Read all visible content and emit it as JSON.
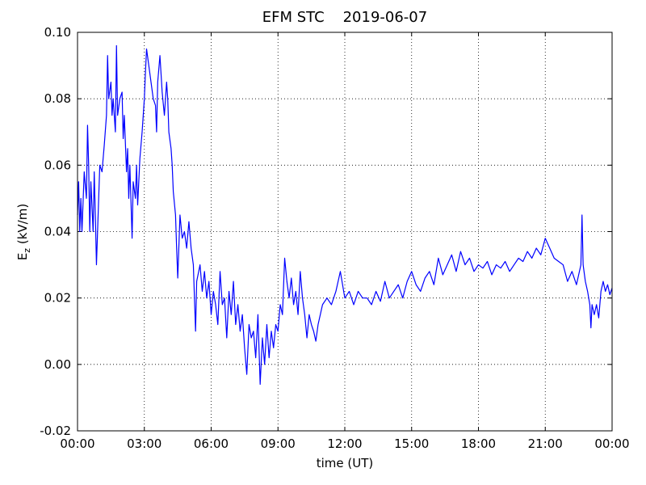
{
  "chart_data": {
    "type": "line",
    "title": "EFM STC    2019-06-07",
    "xlabel": "time (UT)",
    "ylabel": [
      "E",
      "z",
      " (kV/m)"
    ],
    "xlim": [
      0,
      24
    ],
    "xticks": [
      {
        "value": 0,
        "label": "00:00"
      },
      {
        "value": 3,
        "label": "03:00"
      },
      {
        "value": 6,
        "label": "06:00"
      },
      {
        "value": 9,
        "label": "09:00"
      },
      {
        "value": 12,
        "label": "12:00"
      },
      {
        "value": 15,
        "label": "15:00"
      },
      {
        "value": 18,
        "label": "18:00"
      },
      {
        "value": 21,
        "label": "21:00"
      },
      {
        "value": 24,
        "label": "00:00"
      }
    ],
    "ylim": [
      -0.02,
      0.1
    ],
    "yticks": [
      -0.02,
      {
        "value": 0,
        "label": "0.00"
      },
      0.02,
      0.04,
      0.06,
      0.08,
      {
        "value": 0.1,
        "label": "0.10"
      }
    ],
    "grid": true,
    "series": [
      {
        "color": "#0000ff",
        "x": [
          0,
          0.05,
          0.1,
          0.15,
          0.2,
          0.3,
          0.4,
          0.45,
          0.5,
          0.55,
          0.6,
          0.7,
          0.75,
          0.8,
          0.85,
          0.95,
          1.0,
          1.1,
          1.2,
          1.3,
          1.35,
          1.4,
          1.5,
          1.55,
          1.6,
          1.7,
          1.75,
          1.8,
          1.9,
          2.0,
          2.05,
          2.1,
          2.2,
          2.25,
          2.3,
          2.35,
          2.45,
          2.5,
          2.6,
          2.65,
          2.7,
          2.8,
          2.9,
          3.0,
          3.05,
          3.1,
          3.2,
          3.3,
          3.4,
          3.5,
          3.55,
          3.6,
          3.7,
          3.8,
          3.9,
          4.0,
          4.05,
          4.1,
          4.2,
          4.25,
          4.3,
          4.4,
          4.45,
          4.5,
          4.6,
          4.7,
          4.8,
          4.9,
          5.0,
          5.1,
          5.2,
          5.3,
          5.35,
          5.5,
          5.6,
          5.7,
          5.8,
          5.9,
          6.0,
          6.1,
          6.2,
          6.3,
          6.4,
          6.5,
          6.6,
          6.7,
          6.8,
          6.9,
          7.0,
          7.1,
          7.2,
          7.3,
          7.4,
          7.5,
          7.6,
          7.7,
          7.8,
          7.9,
          8.0,
          8.1,
          8.2,
          8.3,
          8.4,
          8.5,
          8.6,
          8.7,
          8.8,
          8.9,
          9.0,
          9.1,
          9.2,
          9.3,
          9.4,
          9.5,
          9.6,
          9.7,
          9.8,
          9.9,
          10.0,
          10.1,
          10.2,
          10.3,
          10.4,
          10.5,
          10.6,
          10.7,
          10.8,
          10.9,
          11.0,
          11.2,
          11.4,
          11.6,
          11.8,
          12.0,
          12.2,
          12.4,
          12.6,
          12.8,
          13.0,
          13.2,
          13.4,
          13.6,
          13.8,
          14.0,
          14.2,
          14.4,
          14.6,
          14.8,
          15.0,
          15.2,
          15.4,
          15.6,
          15.8,
          16.0,
          16.2,
          16.4,
          16.6,
          16.8,
          17.0,
          17.2,
          17.4,
          17.6,
          17.8,
          18.0,
          18.2,
          18.4,
          18.6,
          18.8,
          19.0,
          19.2,
          19.4,
          19.6,
          19.8,
          20.0,
          20.2,
          20.4,
          20.6,
          20.8,
          21.0,
          21.2,
          21.4,
          21.6,
          21.8,
          22.0,
          22.2,
          22.4,
          22.6,
          22.65,
          22.7,
          22.8,
          22.9,
          23.0,
          23.05,
          23.1,
          23.2,
          23.3,
          23.4,
          23.5,
          23.6,
          23.7,
          23.8,
          23.9,
          24.0
        ],
        "values": [
          0.045,
          0.055,
          0.04,
          0.05,
          0.04,
          0.058,
          0.05,
          0.072,
          0.06,
          0.04,
          0.055,
          0.04,
          0.058,
          0.045,
          0.03,
          0.05,
          0.06,
          0.058,
          0.066,
          0.075,
          0.093,
          0.08,
          0.085,
          0.075,
          0.08,
          0.07,
          0.096,
          0.075,
          0.08,
          0.082,
          0.068,
          0.075,
          0.058,
          0.065,
          0.05,
          0.06,
          0.038,
          0.055,
          0.05,
          0.06,
          0.048,
          0.062,
          0.07,
          0.08,
          0.088,
          0.095,
          0.09,
          0.085,
          0.08,
          0.078,
          0.07,
          0.085,
          0.093,
          0.082,
          0.075,
          0.085,
          0.08,
          0.07,
          0.065,
          0.06,
          0.052,
          0.045,
          0.035,
          0.026,
          0.045,
          0.038,
          0.04,
          0.035,
          0.043,
          0.035,
          0.03,
          0.01,
          0.025,
          0.03,
          0.022,
          0.028,
          0.02,
          0.025,
          0.015,
          0.022,
          0.018,
          0.012,
          0.028,
          0.018,
          0.02,
          0.008,
          0.022,
          0.015,
          0.025,
          0.012,
          0.018,
          0.01,
          0.015,
          0.005,
          -0.003,
          0.012,
          0.008,
          0.01,
          0.002,
          0.015,
          -0.006,
          0.008,
          0.0,
          0.012,
          0.002,
          0.01,
          0.005,
          0.012,
          0.01,
          0.018,
          0.015,
          0.032,
          0.025,
          0.02,
          0.026,
          0.018,
          0.022,
          0.015,
          0.028,
          0.02,
          0.015,
          0.008,
          0.015,
          0.012,
          0.01,
          0.007,
          0.012,
          0.015,
          0.018,
          0.02,
          0.018,
          0.022,
          0.028,
          0.02,
          0.022,
          0.018,
          0.022,
          0.02,
          0.02,
          0.018,
          0.022,
          0.019,
          0.025,
          0.02,
          0.022,
          0.024,
          0.02,
          0.025,
          0.028,
          0.024,
          0.022,
          0.026,
          0.028,
          0.024,
          0.032,
          0.027,
          0.03,
          0.033,
          0.028,
          0.034,
          0.03,
          0.032,
          0.028,
          0.03,
          0.029,
          0.031,
          0.027,
          0.03,
          0.029,
          0.031,
          0.028,
          0.03,
          0.032,
          0.031,
          0.034,
          0.032,
          0.035,
          0.033,
          0.038,
          0.035,
          0.032,
          0.031,
          0.03,
          0.025,
          0.028,
          0.024,
          0.03,
          0.045,
          0.03,
          0.025,
          0.022,
          0.018,
          0.011,
          0.018,
          0.015,
          0.018,
          0.014,
          0.022,
          0.025,
          0.022,
          0.024,
          0.021,
          0.023
        ]
      }
    ]
  }
}
